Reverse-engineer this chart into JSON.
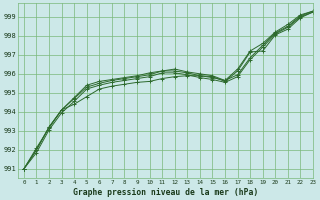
{
  "title": "Graphe pression niveau de la mer (hPa)",
  "bg_color": "#cce8e8",
  "grid_color": "#7ab87a",
  "line_color": "#2d6a2d",
  "xlim": [
    -0.5,
    23
  ],
  "ylim": [
    990.5,
    999.7
  ],
  "yticks": [
    991,
    992,
    993,
    994,
    995,
    996,
    997,
    998,
    999
  ],
  "xticks": [
    0,
    1,
    2,
    3,
    4,
    5,
    6,
    7,
    8,
    9,
    10,
    11,
    12,
    13,
    14,
    15,
    16,
    17,
    18,
    19,
    20,
    21,
    22,
    23
  ],
  "series": [
    [
      991.0,
      992.0,
      993.2,
      994.1,
      994.4,
      994.8,
      995.2,
      995.35,
      995.45,
      995.55,
      995.6,
      995.75,
      995.85,
      995.9,
      995.9,
      995.85,
      995.6,
      996.15,
      997.15,
      997.2,
      998.05,
      998.35,
      998.95,
      999.25
    ],
    [
      991.0,
      992.0,
      993.2,
      994.1,
      994.7,
      995.3,
      995.5,
      995.65,
      995.75,
      995.85,
      995.95,
      996.15,
      996.15,
      996.05,
      995.9,
      995.8,
      995.65,
      995.95,
      996.85,
      997.5,
      998.15,
      998.5,
      999.05,
      999.3
    ],
    [
      991.0,
      992.1,
      993.15,
      994.1,
      994.75,
      995.4,
      995.6,
      995.7,
      995.8,
      995.9,
      996.05,
      996.15,
      996.25,
      996.1,
      996.0,
      995.9,
      995.65,
      996.25,
      997.2,
      997.6,
      998.2,
      998.6,
      999.1,
      999.3
    ],
    [
      991.0,
      991.85,
      993.05,
      993.95,
      994.55,
      995.2,
      995.4,
      995.55,
      995.65,
      995.75,
      995.85,
      996.05,
      996.05,
      995.95,
      995.8,
      995.7,
      995.55,
      995.85,
      996.75,
      997.4,
      998.1,
      998.45,
      999.0,
      999.25
    ]
  ]
}
